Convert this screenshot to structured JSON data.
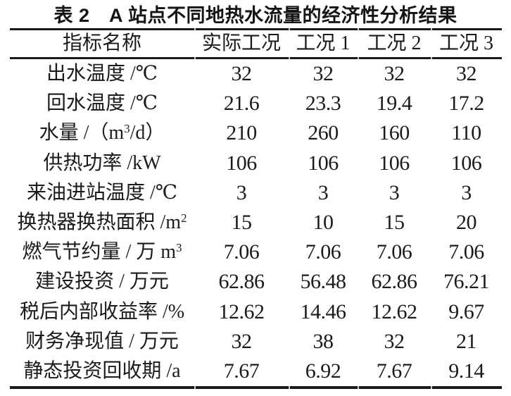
{
  "title": "表 2　A 站点不同地热水流量的经济性分析结果",
  "colors": {
    "background": "#ffffff",
    "text": "#1b1b1b",
    "rule": "#1a1a1a",
    "rule_gap_notch": "#c9c9c9"
  },
  "table": {
    "headers": [
      "指标名称",
      "实际工况",
      "工况 1",
      "工况 2",
      "工况 3"
    ],
    "rows": [
      {
        "label": {
          "pre": "出水温度 /℃",
          "sup": "",
          "post": ""
        },
        "values": [
          "32",
          "32",
          "32",
          "32"
        ]
      },
      {
        "label": {
          "pre": "回水温度 /℃",
          "sup": "",
          "post": ""
        },
        "values": [
          "21.6",
          "23.3",
          "19.4",
          "17.2"
        ]
      },
      {
        "label": {
          "pre": "水量 /（m",
          "sup": "3",
          "post": "/d）"
        },
        "values": [
          "210",
          "260",
          "160",
          "110"
        ]
      },
      {
        "label": {
          "pre": "供热功率 /kW",
          "sup": "",
          "post": ""
        },
        "values": [
          "106",
          "106",
          "106",
          "106"
        ]
      },
      {
        "label": {
          "pre": "来油进站温度 /℃",
          "sup": "",
          "post": ""
        },
        "values": [
          "3",
          "3",
          "3",
          "3"
        ]
      },
      {
        "label": {
          "pre": "换热器换热面积 /m",
          "sup": "2",
          "post": ""
        },
        "values": [
          "15",
          "10",
          "15",
          "20"
        ]
      },
      {
        "label": {
          "pre": "燃气节约量 / 万 m",
          "sup": "3",
          "post": ""
        },
        "values": [
          "7.06",
          "7.06",
          "7.06",
          "7.06"
        ]
      },
      {
        "label": {
          "pre": "建设投资 / 万元",
          "sup": "",
          "post": ""
        },
        "values": [
          "62.86",
          "56.48",
          "62.86",
          "76.21"
        ]
      },
      {
        "label": {
          "pre": "税后内部收益率 /%",
          "sup": "",
          "post": ""
        },
        "values": [
          "12.62",
          "14.46",
          "12.62",
          "9.67"
        ]
      },
      {
        "label": {
          "pre": "财务净现值 / 万元",
          "sup": "",
          "post": ""
        },
        "values": [
          "32",
          "38",
          "32",
          "21"
        ]
      },
      {
        "label": {
          "pre": "静态投资回收期 /a",
          "sup": "",
          "post": ""
        },
        "values": [
          "7.67",
          "6.92",
          "7.67",
          "9.14"
        ]
      }
    ]
  },
  "chart_data": {
    "type": "table",
    "title": "表 2 A 站点不同地热水流量的经济性分析结果",
    "columns": [
      "指标名称",
      "实际工况",
      "工况 1",
      "工况 2",
      "工况 3"
    ],
    "rows": [
      [
        "出水温度 /℃",
        32,
        32,
        32,
        32
      ],
      [
        "回水温度 /℃",
        21.6,
        23.3,
        19.4,
        17.2
      ],
      [
        "水量 /（m3/d）",
        210,
        260,
        160,
        110
      ],
      [
        "供热功率 /kW",
        106,
        106,
        106,
        106
      ],
      [
        "来油进站温度 /℃",
        3,
        3,
        3,
        3
      ],
      [
        "换热器换热面积 /m2",
        15,
        10,
        15,
        20
      ],
      [
        "燃气节约量 / 万 m3",
        7.06,
        7.06,
        7.06,
        7.06
      ],
      [
        "建设投资 / 万元",
        62.86,
        56.48,
        62.86,
        76.21
      ],
      [
        "税后内部收益率 /%",
        12.62,
        14.46,
        12.62,
        9.67
      ],
      [
        "财务净现值 / 万元",
        32,
        38,
        32,
        21
      ],
      [
        "静态投资回收期 /a",
        7.67,
        6.92,
        7.67,
        9.14
      ]
    ]
  }
}
